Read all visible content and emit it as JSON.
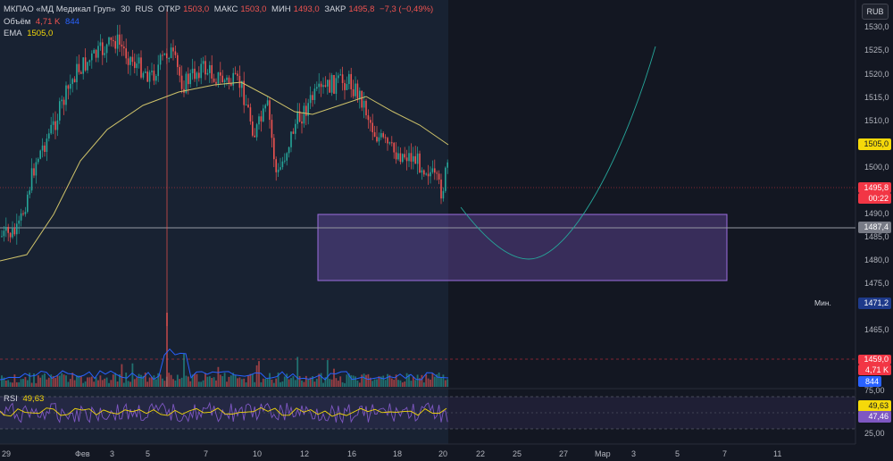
{
  "symbol": {
    "name": "МКПАО «МД Медикал Груп»",
    "name_short": "МКПАО «МД Медикал Груп»",
    "interval": "30",
    "exchange": "RUS"
  },
  "ohlc": {
    "open_label": "ОТКР",
    "open": "1503,0",
    "high_label": "МАКС",
    "high": "1503,0",
    "low_label": "МИН",
    "low": "1493,0",
    "close_label": "ЗАКР",
    "close": "1495,8",
    "change": "−7,3 (−0,49%)"
  },
  "volume": {
    "label": "Объём",
    "value1": "4,71 K",
    "value2": "844"
  },
  "ema": {
    "label": "EMA",
    "value": "1505,0"
  },
  "rsi": {
    "label": "RSI",
    "value1": "49,63"
  },
  "currency_button": "RUB",
  "price_axis": [
    "1530,0",
    "1525,0",
    "1520,0",
    "1515,0",
    "1510,0",
    "1500,0",
    "1490,0",
    "1485,0",
    "1480,0",
    "1475,0",
    "1465,0"
  ],
  "rsi_axis": [
    "75,00",
    "25,00"
  ],
  "price_labels": {
    "ema": "1505,0",
    "last": "1495,8",
    "timer": "00:22",
    "line": "1487,4",
    "min_label": "Мин.",
    "min": "1471,2",
    "vol_price": "1459,0",
    "vol1": "4,71 K",
    "vol2": "844",
    "rsi1": "49,63",
    "rsi2": "47,46"
  },
  "time_axis": [
    "29",
    "Фев",
    "3",
    "5",
    "7",
    "10",
    "12",
    "16",
    "18",
    "20",
    "22",
    "25",
    "27",
    "Мар",
    "3",
    "5",
    "7",
    "11"
  ],
  "colors": {
    "up": "#26a69a",
    "down": "#ef5350",
    "ema": "#cfc36a",
    "zone": "#7e57c2",
    "rsi": "#7e57c2",
    "rsi_ma": "#f5d90a",
    "volume_ma": "#2962ff",
    "forecast": "#26a69a"
  }
}
